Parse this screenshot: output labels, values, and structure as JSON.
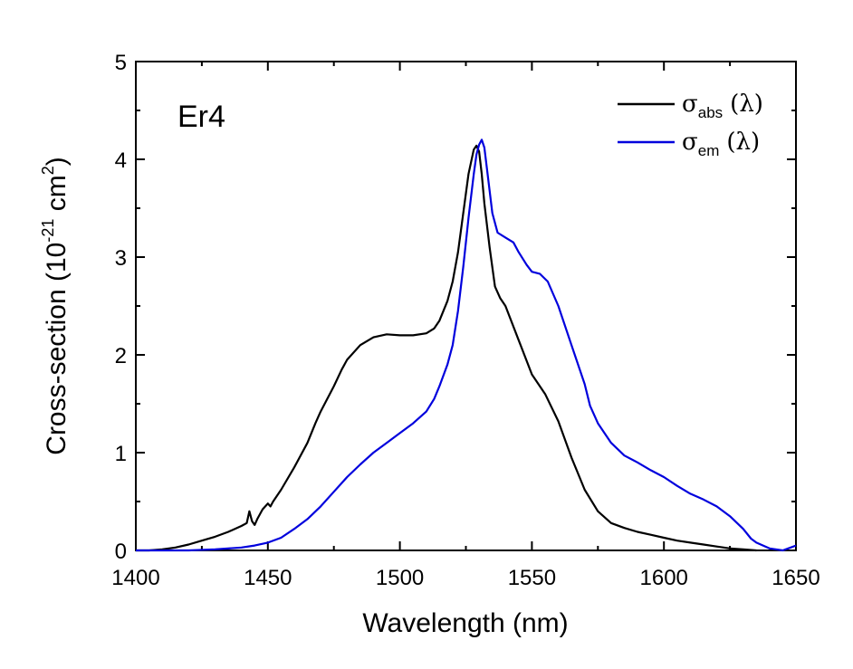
{
  "chart_data": {
    "type": "line",
    "annotation": "Er4",
    "xlabel": "Wavelength (nm)",
    "ylabel": {
      "prefix": "Cross-section (10",
      "exp1": "-21",
      "mid": " cm",
      "exp2": "2",
      "suffix": ")"
    },
    "xlim": [
      1400,
      1650
    ],
    "ylim": [
      0,
      5
    ],
    "xticks": [
      1400,
      1450,
      1500,
      1550,
      1600,
      1650
    ],
    "yticks": [
      0,
      1,
      2,
      3,
      4,
      5
    ],
    "xtick_labels": [
      "1400",
      "1450",
      "1500",
      "1550",
      "1600",
      "1650"
    ],
    "ytick_labels": [
      "0",
      "1",
      "2",
      "3",
      "4",
      "5"
    ],
    "legend_position": "top-right",
    "series": [
      {
        "name": "σabs (λ)",
        "symbol": "σ",
        "sub": "abs",
        "arg": "(λ)",
        "color": "#000000",
        "x": [
          1400,
          1405,
          1410,
          1415,
          1420,
          1425,
          1430,
          1435,
          1440,
          1442,
          1443,
          1444,
          1445,
          1446,
          1448,
          1450,
          1451,
          1452,
          1455,
          1460,
          1465,
          1468,
          1470,
          1475,
          1478,
          1480,
          1485,
          1490,
          1495,
          1500,
          1505,
          1510,
          1513,
          1515,
          1518,
          1520,
          1522,
          1524,
          1526,
          1528,
          1529,
          1530,
          1531,
          1532,
          1534,
          1536,
          1538,
          1540,
          1545,
          1550,
          1555,
          1560,
          1565,
          1570,
          1575,
          1580,
          1585,
          1590,
          1595,
          1600,
          1605,
          1610,
          1615,
          1620,
          1625,
          1630,
          1635
        ],
        "y": [
          0,
          0,
          0.01,
          0.03,
          0.06,
          0.1,
          0.14,
          0.19,
          0.25,
          0.28,
          0.4,
          0.3,
          0.26,
          0.32,
          0.42,
          0.48,
          0.45,
          0.5,
          0.62,
          0.85,
          1.1,
          1.3,
          1.42,
          1.68,
          1.85,
          1.95,
          2.1,
          2.18,
          2.21,
          2.2,
          2.2,
          2.22,
          2.27,
          2.35,
          2.55,
          2.75,
          3.05,
          3.45,
          3.85,
          4.1,
          4.14,
          4.08,
          3.85,
          3.55,
          3.1,
          2.7,
          2.58,
          2.5,
          2.15,
          1.8,
          1.6,
          1.32,
          0.95,
          0.62,
          0.4,
          0.28,
          0.23,
          0.19,
          0.16,
          0.13,
          0.1,
          0.08,
          0.06,
          0.04,
          0.02,
          0.01,
          0
        ]
      },
      {
        "name": "σem (λ)",
        "symbol": "σ",
        "sub": "em",
        "arg": "(λ)",
        "color": "#0000dd",
        "x": [
          1400,
          1420,
          1430,
          1440,
          1445,
          1450,
          1455,
          1460,
          1465,
          1470,
          1475,
          1480,
          1485,
          1490,
          1495,
          1500,
          1505,
          1510,
          1513,
          1515,
          1518,
          1520,
          1522,
          1524,
          1526,
          1528,
          1529,
          1530,
          1531,
          1532,
          1533,
          1535,
          1537,
          1540,
          1543,
          1545,
          1548,
          1550,
          1553,
          1556,
          1560,
          1565,
          1570,
          1572,
          1575,
          1580,
          1585,
          1590,
          1595,
          1600,
          1605,
          1610,
          1615,
          1620,
          1625,
          1630,
          1633,
          1635,
          1640,
          1645,
          1648,
          1650
        ],
        "y": [
          0,
          0,
          0.01,
          0.03,
          0.05,
          0.08,
          0.13,
          0.22,
          0.32,
          0.45,
          0.6,
          0.75,
          0.88,
          1.0,
          1.1,
          1.2,
          1.3,
          1.42,
          1.55,
          1.68,
          1.9,
          2.1,
          2.45,
          2.9,
          3.4,
          3.85,
          4.05,
          4.15,
          4.2,
          4.12,
          3.9,
          3.45,
          3.25,
          3.2,
          3.15,
          3.05,
          2.92,
          2.85,
          2.83,
          2.75,
          2.5,
          2.1,
          1.7,
          1.48,
          1.3,
          1.1,
          0.97,
          0.9,
          0.82,
          0.75,
          0.66,
          0.58,
          0.52,
          0.45,
          0.35,
          0.22,
          0.12,
          0.08,
          0.02,
          0,
          0.03,
          0.05
        ]
      }
    ]
  }
}
